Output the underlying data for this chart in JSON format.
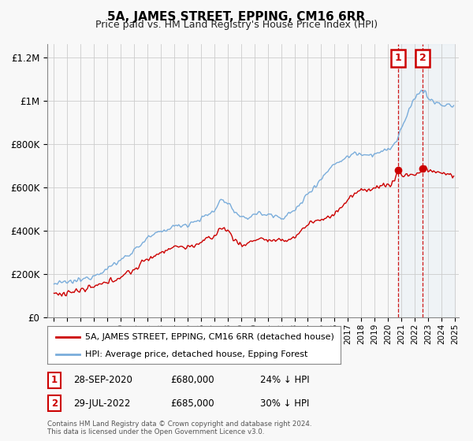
{
  "title": "5A, JAMES STREET, EPPING, CM16 6RR",
  "subtitle": "Price paid vs. HM Land Registry's House Price Index (HPI)",
  "red_label": "5A, JAMES STREET, EPPING, CM16 6RR (detached house)",
  "blue_label": "HPI: Average price, detached house, Epping Forest",
  "annotation1_label": "1",
  "annotation1_date": "28-SEP-2020",
  "annotation1_price": "£680,000",
  "annotation1_hpi": "24% ↓ HPI",
  "annotation1_year": 2020.75,
  "annotation1_value": 680000,
  "annotation2_label": "2",
  "annotation2_date": "29-JUL-2022",
  "annotation2_price": "£685,000",
  "annotation2_hpi": "30% ↓ HPI",
  "annotation2_year": 2022.58,
  "annotation2_value": 685000,
  "footnote": "Contains HM Land Registry data © Crown copyright and database right 2024.\nThis data is licensed under the Open Government Licence v3.0.",
  "ylim": [
    0,
    1250000
  ],
  "xlim_start": 1995,
  "xlim_end": 2025,
  "red_color": "#cc0000",
  "blue_color": "#7aaddb",
  "shaded_color": "#ddeeff",
  "grid_color": "#cccccc",
  "background_color": "#f8f8f8",
  "plot_bg": "#f8f8f8"
}
